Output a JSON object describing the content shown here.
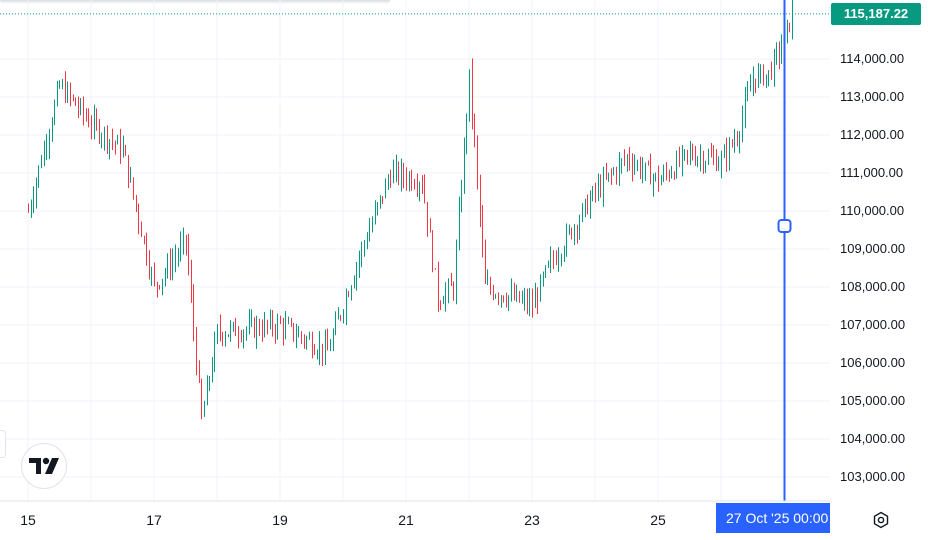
{
  "chart_data": {
    "type": "candlestick",
    "title": "",
    "ylim": [
      102500,
      115600
    ],
    "y_ticks": [
      103000,
      104000,
      105000,
      106000,
      107000,
      108000,
      109000,
      110000,
      111000,
      112000,
      113000,
      114000
    ],
    "y_tick_labels": [
      "103,000.00",
      "104,000.00",
      "105,000.00",
      "106,000.00",
      "107,000.00",
      "108,000.00",
      "109,000.00",
      "110,000.00",
      "111,000.00",
      "112,000.00",
      "113,000.00",
      "114,000.00"
    ],
    "x_ticks": [
      "15",
      "17",
      "19",
      "21",
      "23",
      "25"
    ],
    "last_price": 115187.22,
    "last_price_label": "115,187.22",
    "crosshair_label": "27 Oct '25   00:00",
    "anchors": [
      [
        "15 Oct",
        110000
      ],
      [
        "15 Oct 12:00",
        113300
      ],
      [
        "16 Oct",
        112300
      ],
      [
        "16 Oct 12:00",
        111600
      ],
      [
        "17 Oct",
        108000
      ],
      [
        "17 Oct 12:00",
        109200
      ],
      [
        "17 Oct 18:00",
        104500
      ],
      [
        "18 Oct",
        106800
      ],
      [
        "19 Oct",
        107000
      ],
      [
        "19 Oct 18:00",
        106300
      ],
      [
        "20 Oct 06:00",
        108800
      ],
      [
        "20 Oct 18:00",
        111000
      ],
      [
        "21 Oct 06:00",
        110800
      ],
      [
        "21 Oct 12:00",
        107700
      ],
      [
        "21 Oct 18:00",
        108000
      ],
      [
        "22 Oct",
        113500
      ],
      [
        "22 Oct 06:00",
        108000
      ],
      [
        "23 Oct",
        107500
      ],
      [
        "23 Oct 06:00",
        108500
      ],
      [
        "24 Oct",
        110500
      ],
      [
        "24 Oct 12:00",
        111400
      ],
      [
        "25 Oct",
        110800
      ],
      [
        "25 Oct 12:00",
        111500
      ],
      [
        "26 Oct",
        111300
      ],
      [
        "26 Oct 06:00",
        112000
      ],
      [
        "26 Oct 12:00",
        113500
      ],
      [
        "26 Oct 18:00",
        113600
      ],
      [
        "27 Oct",
        114500
      ],
      [
        "27 Oct 03:00",
        115187.22
      ]
    ],
    "grid": true,
    "colors": {
      "up": "#089981",
      "down": "#f23645",
      "crosshair": "#2962ff",
      "grid": "#f0f3fa"
    }
  },
  "ui": {
    "logo_text": "TV",
    "logo_icon": "tradingview-logo-icon",
    "settings_icon": "gear-icon"
  }
}
